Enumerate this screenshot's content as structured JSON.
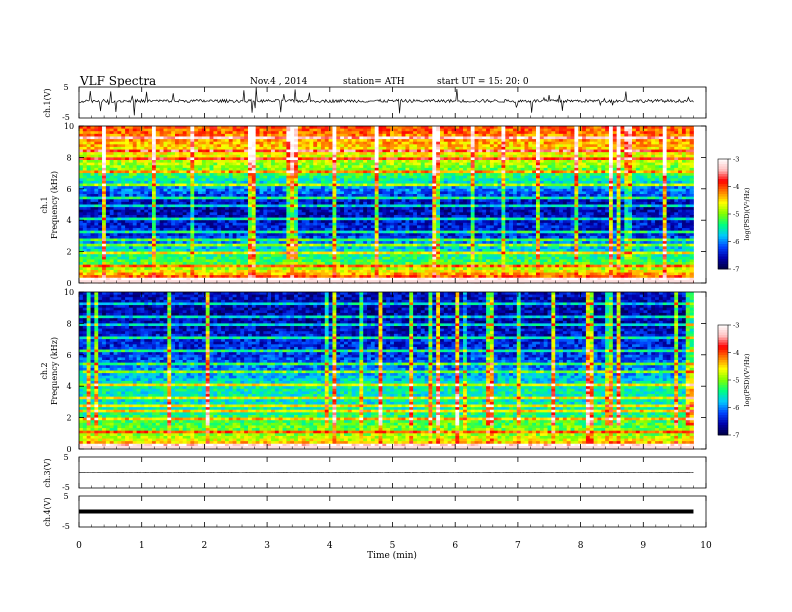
{
  "header": {
    "title": "VLF  Spectra",
    "date": "Nov.4  , 2014",
    "station": "station= ATH",
    "start": "start  UT  =    15: 20: 0"
  },
  "colors": {
    "frame": "#000000",
    "colormap": [
      "#000044",
      "#0000aa",
      "#0044ff",
      "#00c8ff",
      "#00ff80",
      "#80ff00",
      "#ffff00",
      "#ff8000",
      "#ff0000",
      "#ffc0c0",
      "#ffffff"
    ]
  },
  "colorbar": {
    "label": "log(PSD)(V²/Hz)",
    "ticks": [
      "-3",
      "-4",
      "-5",
      "-6",
      "-7"
    ],
    "range": [
      -7,
      -3
    ]
  },
  "chart_data": [
    {
      "type": "line",
      "panel": "ch1-waveform",
      "ylabel": "ch.1(V)",
      "ylim": [
        -5,
        5
      ],
      "ticks": [
        "5",
        "-5"
      ],
      "description_values": {
        "baseline": 0.5,
        "noise": 0.5
      }
    },
    {
      "type": "heatmap",
      "panel": "ch1-spectrogram",
      "ylabel_channel": "ch.1",
      "ylabel": "Frequency  (kHz)",
      "ylim": [
        0,
        10
      ],
      "y_ticks": [
        "0",
        "2",
        "4",
        "6",
        "8",
        "10"
      ],
      "xlim": [
        0,
        10
      ],
      "data_end_min": 9.8,
      "profile_logpsd": [
        {
          "f": 0.0,
          "v": -3.5
        },
        {
          "f": 0.5,
          "v": -4.2
        },
        {
          "f": 1.0,
          "v": -5.0
        },
        {
          "f": 2.0,
          "v": -5.6
        },
        {
          "f": 3.0,
          "v": -6.3
        },
        {
          "f": 4.0,
          "v": -6.5
        },
        {
          "f": 5.0,
          "v": -6.6
        },
        {
          "f": 6.0,
          "v": -6.0
        },
        {
          "f": 7.0,
          "v": -5.2
        },
        {
          "f": 8.0,
          "v": -4.7
        },
        {
          "f": 9.0,
          "v": -4.3
        },
        {
          "f": 10.0,
          "v": -4.0
        }
      ]
    },
    {
      "type": "heatmap",
      "panel": "ch2-spectrogram",
      "ylabel_channel": "ch.2",
      "ylabel": "Frequency  (kHz)",
      "ylim": [
        0,
        10
      ],
      "y_ticks": [
        "0",
        "2",
        "4",
        "6",
        "8",
        "10"
      ],
      "xlim": [
        0,
        10
      ],
      "data_end_min": 9.8,
      "profile_logpsd": [
        {
          "f": 0.0,
          "v": -3.6
        },
        {
          "f": 0.5,
          "v": -4.6
        },
        {
          "f": 1.0,
          "v": -5.0
        },
        {
          "f": 2.0,
          "v": -5.3
        },
        {
          "f": 3.0,
          "v": -5.6
        },
        {
          "f": 4.0,
          "v": -5.5
        },
        {
          "f": 5.0,
          "v": -6.0
        },
        {
          "f": 6.0,
          "v": -6.3
        },
        {
          "f": 7.0,
          "v": -6.4
        },
        {
          "f": 8.0,
          "v": -6.6
        },
        {
          "f": 9.0,
          "v": -6.6
        },
        {
          "f": 10.0,
          "v": -6.5
        }
      ]
    },
    {
      "type": "line",
      "panel": "ch3-waveform",
      "ylabel": "ch.3(V)",
      "ylim": [
        -5,
        5
      ],
      "ticks": [
        "5",
        "-5"
      ],
      "description_values": {
        "baseline": 0.0,
        "noise": 0.08
      }
    },
    {
      "type": "line",
      "panel": "ch4-waveform",
      "ylabel": "ch.4(V)",
      "ylim": [
        -5,
        5
      ],
      "ticks": [
        "5",
        "-5"
      ],
      "description_values": {
        "baseline": 0.0,
        "noise": 0.0
      }
    }
  ],
  "xaxis": {
    "label": "Time  (min)",
    "ticks": [
      "0",
      "1",
      "2",
      "3",
      "4",
      "5",
      "6",
      "7",
      "8",
      "9",
      "10"
    ],
    "range": [
      0,
      10
    ]
  }
}
